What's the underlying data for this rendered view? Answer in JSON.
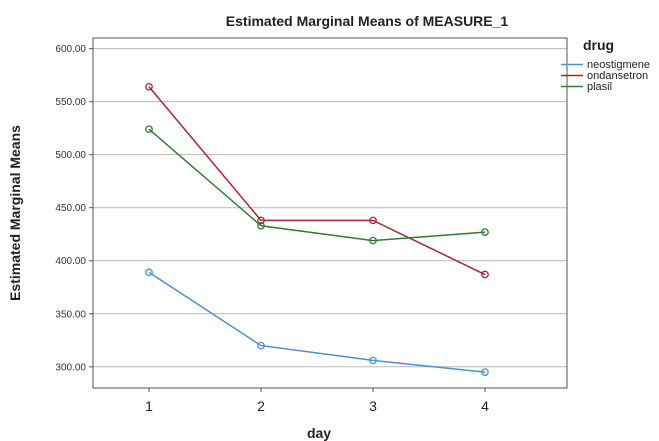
{
  "chart_data": {
    "type": "line",
    "title": "Estimated Marginal Means of MEASURE_1",
    "xlabel": "day",
    "ylabel": "Estimated Marginal Means",
    "categories": [
      "1",
      "2",
      "3",
      "4"
    ],
    "ylim": [
      280,
      610
    ],
    "yticks": [
      300,
      350,
      400,
      450,
      500,
      550,
      600
    ],
    "ytick_labels": [
      "300.00",
      "350.00",
      "400.00",
      "450.00",
      "500.00",
      "550.00",
      "600.00"
    ],
    "grid": "horizontal",
    "legend_title": "drug",
    "legend_position": "top-right, outside plot",
    "series": [
      {
        "name": "neostigmene",
        "color": "#4a90d9",
        "values": [
          389,
          320,
          306,
          295
        ]
      },
      {
        "name": "ondansetron",
        "color": "#b22233",
        "values": [
          564,
          438,
          438,
          387
        ]
      },
      {
        "name": "plasil",
        "color": "#2e7d32",
        "values": [
          524,
          433,
          419,
          427
        ]
      }
    ]
  }
}
